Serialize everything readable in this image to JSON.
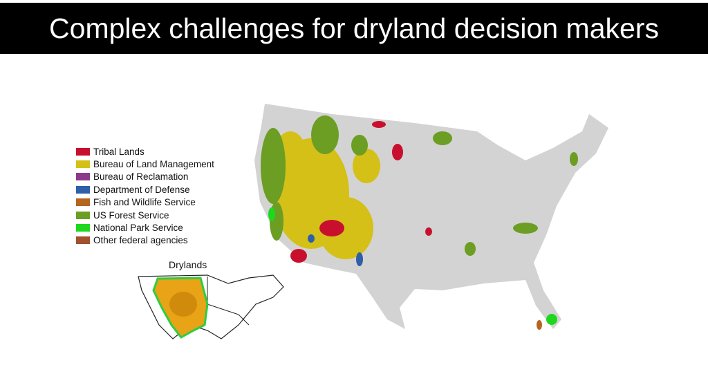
{
  "header": {
    "title": "Complex challenges for dryland decision makers"
  },
  "legend": [
    {
      "label": "Tribal Lands",
      "color": "#c8102e"
    },
    {
      "label": "Bureau of Land Management",
      "color": "#d4c017"
    },
    {
      "label": "Bureau of Reclamation",
      "color": "#8b3a8b"
    },
    {
      "label": "Department of Defense",
      "color": "#2e5fa8"
    },
    {
      "label": "Fish and Wildlife Service",
      "color": "#b5651d"
    },
    {
      "label": "US Forest Service",
      "color": "#6b9e23"
    },
    {
      "label": "National Park Service",
      "color": "#1ed81e"
    },
    {
      "label": "Other federal agencies",
      "color": "#a0522d"
    }
  ],
  "inset": {
    "title": "Drylands"
  }
}
